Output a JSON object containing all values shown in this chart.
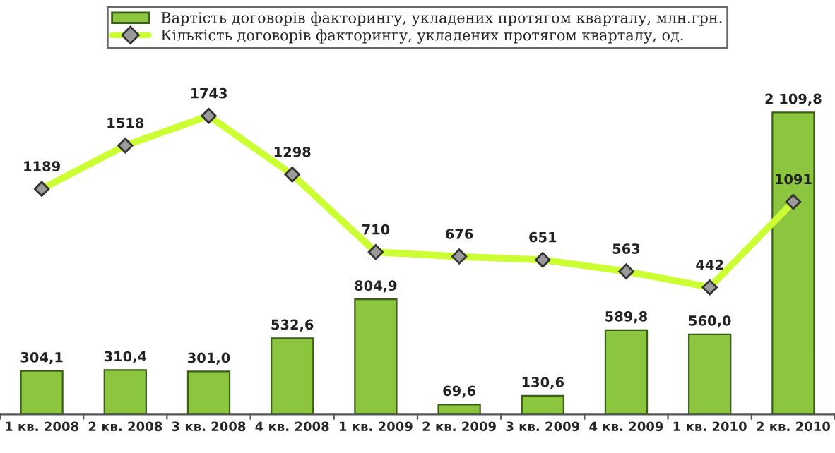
{
  "chart_data": {
    "type": "bar",
    "categories": [
      "1 кв. 2008",
      "2 кв. 2008",
      "3 кв. 2008",
      "4 кв. 2008",
      "1 кв. 2009",
      "2 кв. 2009",
      "3 кв. 2009",
      "4 кв. 2009",
      "1 кв. 2010",
      "2 кв. 2010"
    ],
    "series": [
      {
        "name": "Вартість договорів факторингу, укладених протягом кварталу, млн.грн.",
        "axis": "y",
        "color": "#8cc63e",
        "values": [
          304.1,
          310.4,
          301.0,
          532.6,
          804.9,
          69.6,
          130.6,
          589.8,
          560.0,
          2109.8
        ],
        "value_labels": [
          "304,1",
          "310,4",
          "301,0",
          "532,6",
          "804,9",
          "69,6",
          "130,6",
          "589,8",
          "560,0",
          "2 109,8"
        ]
      },
      {
        "name": "Кількість договорів факторингу, укладених протягом кварталу, од.",
        "type": "line",
        "axis": "y2",
        "color": "#ccff33",
        "marker": "diamond",
        "line_style": "solid",
        "values": [
          1189,
          1518,
          1743,
          1298,
          710,
          676,
          651,
          563,
          442,
          1091
        ],
        "value_labels": [
          "1189",
          "1518",
          "1743",
          "1298",
          "710",
          "676",
          "651",
          "563",
          "442",
          "1091"
        ]
      }
    ],
    "legend": "top",
    "grid": false,
    "tick_labels": "x"
  }
}
